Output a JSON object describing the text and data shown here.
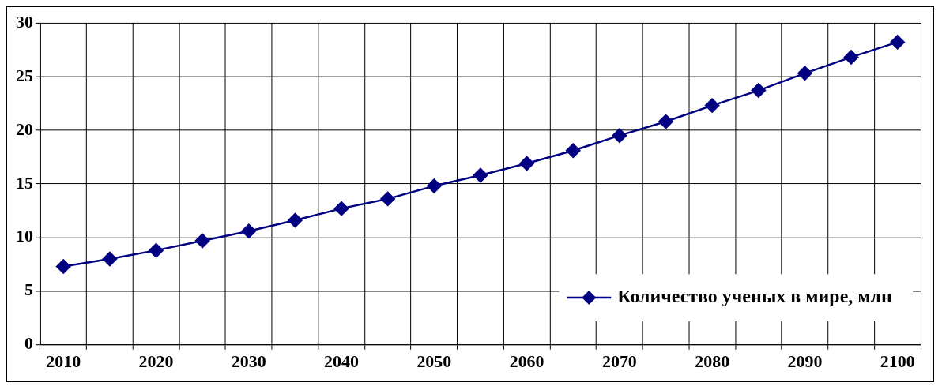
{
  "chart_data": {
    "type": "line",
    "categories": [
      "2010",
      null,
      "2020",
      null,
      "2030",
      null,
      "2040",
      null,
      "2050",
      null,
      "2060",
      null,
      "2070",
      null,
      "2080",
      null,
      "2090",
      null,
      "2100"
    ],
    "series": [
      {
        "name": "Количество ученых в мире, млн",
        "color": "#000080",
        "values": [
          7.3,
          8.0,
          8.8,
          9.7,
          10.6,
          11.6,
          12.7,
          13.6,
          14.8,
          15.8,
          16.9,
          18.1,
          19.5,
          20.8,
          22.3,
          23.7,
          25.3,
          26.8,
          28.2
        ]
      }
    ],
    "ylim": [
      0,
      30
    ],
    "yticks": [
      0,
      5,
      10,
      15,
      20,
      25,
      30
    ],
    "grid": true,
    "legend": "bottom right",
    "marker": "diamond",
    "line_style": "solid"
  }
}
